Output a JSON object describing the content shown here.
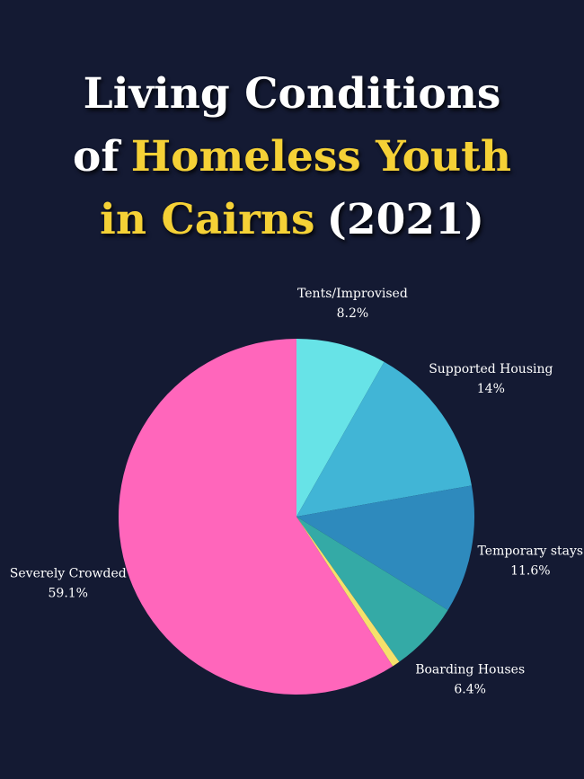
{
  "chart_data": {
    "type": "pie",
    "title": [
      [
        {
          "text": "Living Conditions",
          "highlight": false
        }
      ],
      [
        {
          "text": "of",
          "highlight": false
        },
        {
          "text": "Homeless Youth",
          "highlight": true
        }
      ],
      [
        {
          "text": "in Cairns",
          "highlight": true
        },
        {
          "text": "(2021)",
          "highlight": false
        }
      ]
    ],
    "title_color": "#ffffff",
    "highlight_color": "#f5d136",
    "categories": [
      "Tents/Improvised",
      "Supported Housing",
      "Temporary stays",
      "Boarding Houses",
      null,
      "Severely Crowded"
    ],
    "values": [
      8.2,
      14,
      11.6,
      6.4,
      0.7,
      59.1
    ],
    "value_labels": [
      "8.2%",
      "14%",
      "11.6%",
      "6.4%",
      null,
      "59.1%"
    ],
    "colors": [
      "#67e3e7",
      "#41b5d6",
      "#2e8abd",
      "#34aaa6",
      "#f6e06b",
      "#ff66bb"
    ]
  }
}
